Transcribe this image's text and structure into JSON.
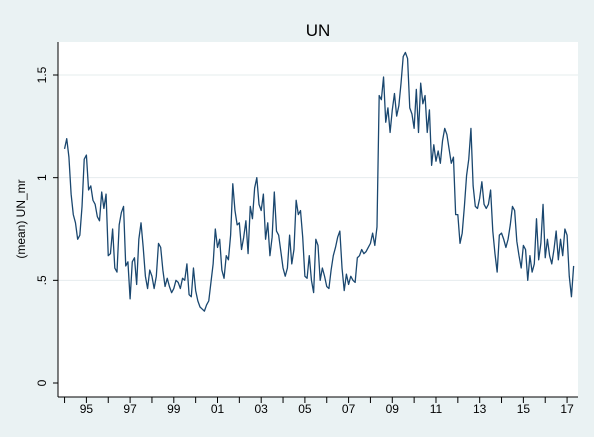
{
  "chart_data": {
    "type": "line",
    "title": "UN",
    "ylabel": "(mean) UN_mr",
    "xlabel": "",
    "ylim": [
      0,
      1.6
    ],
    "xlim": [
      1993.7,
      2017.5
    ],
    "yticks": [
      0,
      0.5,
      1,
      1.5
    ],
    "ytick_labels": [
      "0",
      ".5",
      "1",
      "1.5"
    ],
    "xticks": [
      1994,
      1995,
      1996,
      1997,
      1998,
      1999,
      2000,
      2001,
      2002,
      2003,
      2004,
      2005,
      2006,
      2007,
      2008,
      2009,
      2010,
      2011,
      2012,
      2013,
      2014,
      2015,
      2016,
      2017
    ],
    "xtick_labels": [
      "",
      "95",
      "",
      "97",
      "",
      "99",
      "",
      "01",
      "",
      "03",
      "",
      "05",
      "",
      "07",
      "",
      "09",
      "",
      "11",
      "",
      "13",
      "",
      "15",
      "",
      "17"
    ],
    "grid": true,
    "series": [
      {
        "color": "#1a476f",
        "points": [
          [
            1994.0,
            1.14
          ],
          [
            1994.1,
            1.19
          ],
          [
            1994.2,
            1.1
          ],
          [
            1994.3,
            0.92
          ],
          [
            1994.4,
            0.82
          ],
          [
            1994.5,
            0.78
          ],
          [
            1994.6,
            0.7
          ],
          [
            1994.7,
            0.72
          ],
          [
            1994.8,
            0.86
          ],
          [
            1994.9,
            1.09
          ],
          [
            1995.0,
            1.11
          ],
          [
            1995.1,
            0.94
          ],
          [
            1995.2,
            0.96
          ],
          [
            1995.3,
            0.89
          ],
          [
            1995.4,
            0.87
          ],
          [
            1995.5,
            0.81
          ],
          [
            1995.6,
            0.79
          ],
          [
            1995.7,
            0.93
          ],
          [
            1995.8,
            0.85
          ],
          [
            1995.9,
            0.92
          ],
          [
            1996.0,
            0.62
          ],
          [
            1996.1,
            0.63
          ],
          [
            1996.2,
            0.75
          ],
          [
            1996.3,
            0.56
          ],
          [
            1996.4,
            0.54
          ],
          [
            1996.5,
            0.77
          ],
          [
            1996.6,
            0.83
          ],
          [
            1996.7,
            0.86
          ],
          [
            1996.8,
            0.57
          ],
          [
            1996.9,
            0.59
          ],
          [
            1997.0,
            0.41
          ],
          [
            1997.1,
            0.59
          ],
          [
            1997.2,
            0.61
          ],
          [
            1997.3,
            0.48
          ],
          [
            1997.4,
            0.7
          ],
          [
            1997.5,
            0.78
          ],
          [
            1997.6,
            0.66
          ],
          [
            1997.7,
            0.52
          ],
          [
            1997.8,
            0.46
          ],
          [
            1997.9,
            0.55
          ],
          [
            1998.0,
            0.52
          ],
          [
            1998.1,
            0.46
          ],
          [
            1998.2,
            0.52
          ],
          [
            1998.3,
            0.68
          ],
          [
            1998.4,
            0.66
          ],
          [
            1998.5,
            0.55
          ],
          [
            1998.6,
            0.47
          ],
          [
            1998.7,
            0.51
          ],
          [
            1998.8,
            0.47
          ],
          [
            1998.9,
            0.44
          ],
          [
            1999.0,
            0.46
          ],
          [
            1999.1,
            0.5
          ],
          [
            1999.2,
            0.49
          ],
          [
            1999.3,
            0.46
          ],
          [
            1999.4,
            0.51
          ],
          [
            1999.5,
            0.5
          ],
          [
            1999.6,
            0.58
          ],
          [
            1999.7,
            0.43
          ],
          [
            1999.8,
            0.42
          ],
          [
            1999.9,
            0.56
          ],
          [
            2000.0,
            0.45
          ],
          [
            2000.1,
            0.4
          ],
          [
            2000.2,
            0.37
          ],
          [
            2000.3,
            0.36
          ],
          [
            2000.4,
            0.35
          ],
          [
            2000.5,
            0.38
          ],
          [
            2000.6,
            0.4
          ],
          [
            2000.7,
            0.49
          ],
          [
            2000.8,
            0.58
          ],
          [
            2000.9,
            0.75
          ],
          [
            2001.0,
            0.66
          ],
          [
            2001.1,
            0.7
          ],
          [
            2001.2,
            0.55
          ],
          [
            2001.3,
            0.51
          ],
          [
            2001.4,
            0.62
          ],
          [
            2001.5,
            0.6
          ],
          [
            2001.6,
            0.72
          ],
          [
            2001.7,
            0.97
          ],
          [
            2001.8,
            0.84
          ],
          [
            2001.9,
            0.77
          ],
          [
            2002.0,
            0.78
          ],
          [
            2002.1,
            0.65
          ],
          [
            2002.2,
            0.71
          ],
          [
            2002.3,
            0.79
          ],
          [
            2002.4,
            0.63
          ],
          [
            2002.5,
            0.86
          ],
          [
            2002.6,
            0.8
          ],
          [
            2002.7,
            0.95
          ],
          [
            2002.8,
            1.0
          ],
          [
            2002.9,
            0.87
          ],
          [
            2003.0,
            0.84
          ],
          [
            2003.1,
            0.92
          ],
          [
            2003.2,
            0.7
          ],
          [
            2003.3,
            0.78
          ],
          [
            2003.4,
            0.62
          ],
          [
            2003.5,
            0.71
          ],
          [
            2003.6,
            0.93
          ],
          [
            2003.7,
            0.74
          ],
          [
            2003.8,
            0.72
          ],
          [
            2003.9,
            0.64
          ],
          [
            2004.0,
            0.56
          ],
          [
            2004.1,
            0.52
          ],
          [
            2004.2,
            0.56
          ],
          [
            2004.3,
            0.72
          ],
          [
            2004.4,
            0.58
          ],
          [
            2004.5,
            0.65
          ],
          [
            2004.6,
            0.89
          ],
          [
            2004.7,
            0.82
          ],
          [
            2004.8,
            0.84
          ],
          [
            2004.9,
            0.71
          ],
          [
            2005.0,
            0.52
          ],
          [
            2005.1,
            0.51
          ],
          [
            2005.2,
            0.62
          ],
          [
            2005.3,
            0.5
          ],
          [
            2005.4,
            0.44
          ],
          [
            2005.5,
            0.7
          ],
          [
            2005.6,
            0.67
          ],
          [
            2005.7,
            0.5
          ],
          [
            2005.8,
            0.56
          ],
          [
            2005.9,
            0.52
          ],
          [
            2006.0,
            0.47
          ],
          [
            2006.1,
            0.46
          ],
          [
            2006.2,
            0.55
          ],
          [
            2006.3,
            0.62
          ],
          [
            2006.4,
            0.66
          ],
          [
            2006.5,
            0.71
          ],
          [
            2006.6,
            0.74
          ],
          [
            2006.7,
            0.56
          ],
          [
            2006.8,
            0.45
          ],
          [
            2006.9,
            0.53
          ],
          [
            2007.0,
            0.48
          ],
          [
            2007.1,
            0.52
          ],
          [
            2007.2,
            0.5
          ],
          [
            2007.3,
            0.49
          ],
          [
            2007.4,
            0.61
          ],
          [
            2007.5,
            0.62
          ],
          [
            2007.6,
            0.65
          ],
          [
            2007.7,
            0.63
          ],
          [
            2007.8,
            0.64
          ],
          [
            2007.9,
            0.66
          ],
          [
            2008.0,
            0.68
          ],
          [
            2008.1,
            0.73
          ],
          [
            2008.2,
            0.67
          ],
          [
            2008.3,
            0.76
          ],
          [
            2008.4,
            1.4
          ],
          [
            2008.5,
            1.38
          ],
          [
            2008.6,
            1.49
          ],
          [
            2008.7,
            1.27
          ],
          [
            2008.8,
            1.34
          ],
          [
            2008.9,
            1.22
          ],
          [
            2009.0,
            1.33
          ],
          [
            2009.1,
            1.41
          ],
          [
            2009.2,
            1.3
          ],
          [
            2009.3,
            1.35
          ],
          [
            2009.4,
            1.46
          ],
          [
            2009.5,
            1.59
          ],
          [
            2009.6,
            1.61
          ],
          [
            2009.7,
            1.58
          ],
          [
            2009.8,
            1.34
          ],
          [
            2009.9,
            1.31
          ],
          [
            2010.0,
            1.24
          ],
          [
            2010.1,
            1.43
          ],
          [
            2010.2,
            1.22
          ],
          [
            2010.3,
            1.46
          ],
          [
            2010.4,
            1.36
          ],
          [
            2010.5,
            1.4
          ],
          [
            2010.6,
            1.22
          ],
          [
            2010.7,
            1.33
          ],
          [
            2010.8,
            1.06
          ],
          [
            2010.9,
            1.16
          ],
          [
            2011.0,
            1.08
          ],
          [
            2011.1,
            1.13
          ],
          [
            2011.2,
            1.07
          ],
          [
            2011.3,
            1.18
          ],
          [
            2011.4,
            1.24
          ],
          [
            2011.5,
            1.21
          ],
          [
            2011.6,
            1.14
          ],
          [
            2011.7,
            1.07
          ],
          [
            2011.8,
            1.1
          ],
          [
            2011.9,
            0.82
          ],
          [
            2012.0,
            0.82
          ],
          [
            2012.1,
            0.68
          ],
          [
            2012.2,
            0.73
          ],
          [
            2012.3,
            0.86
          ],
          [
            2012.4,
            1.01
          ],
          [
            2012.5,
            1.09
          ],
          [
            2012.6,
            1.24
          ],
          [
            2012.7,
            0.96
          ],
          [
            2012.8,
            0.86
          ],
          [
            2012.9,
            0.85
          ],
          [
            2013.0,
            0.9
          ],
          [
            2013.1,
            0.98
          ],
          [
            2013.2,
            0.87
          ],
          [
            2013.3,
            0.85
          ],
          [
            2013.4,
            0.87
          ],
          [
            2013.5,
            0.94
          ],
          [
            2013.6,
            0.74
          ],
          [
            2013.7,
            0.63
          ],
          [
            2013.8,
            0.54
          ],
          [
            2013.9,
            0.72
          ],
          [
            2014.0,
            0.73
          ],
          [
            2014.1,
            0.7
          ],
          [
            2014.2,
            0.66
          ],
          [
            2014.3,
            0.7
          ],
          [
            2014.4,
            0.77
          ],
          [
            2014.5,
            0.86
          ],
          [
            2014.6,
            0.84
          ],
          [
            2014.7,
            0.69
          ],
          [
            2014.8,
            0.62
          ],
          [
            2014.9,
            0.56
          ],
          [
            2015.0,
            0.67
          ],
          [
            2015.1,
            0.65
          ],
          [
            2015.2,
            0.5
          ],
          [
            2015.3,
            0.62
          ],
          [
            2015.4,
            0.54
          ],
          [
            2015.5,
            0.58
          ],
          [
            2015.6,
            0.8
          ],
          [
            2015.7,
            0.6
          ],
          [
            2015.8,
            0.68
          ],
          [
            2015.9,
            0.87
          ],
          [
            2016.0,
            0.61
          ],
          [
            2016.1,
            0.7
          ],
          [
            2016.2,
            0.62
          ],
          [
            2016.3,
            0.58
          ],
          [
            2016.4,
            0.65
          ],
          [
            2016.5,
            0.74
          ],
          [
            2016.6,
            0.6
          ],
          [
            2016.7,
            0.7
          ],
          [
            2016.8,
            0.62
          ],
          [
            2016.9,
            0.75
          ],
          [
            2017.0,
            0.72
          ],
          [
            2017.1,
            0.52
          ],
          [
            2017.2,
            0.42
          ],
          [
            2017.3,
            0.57
          ]
        ]
      }
    ]
  }
}
